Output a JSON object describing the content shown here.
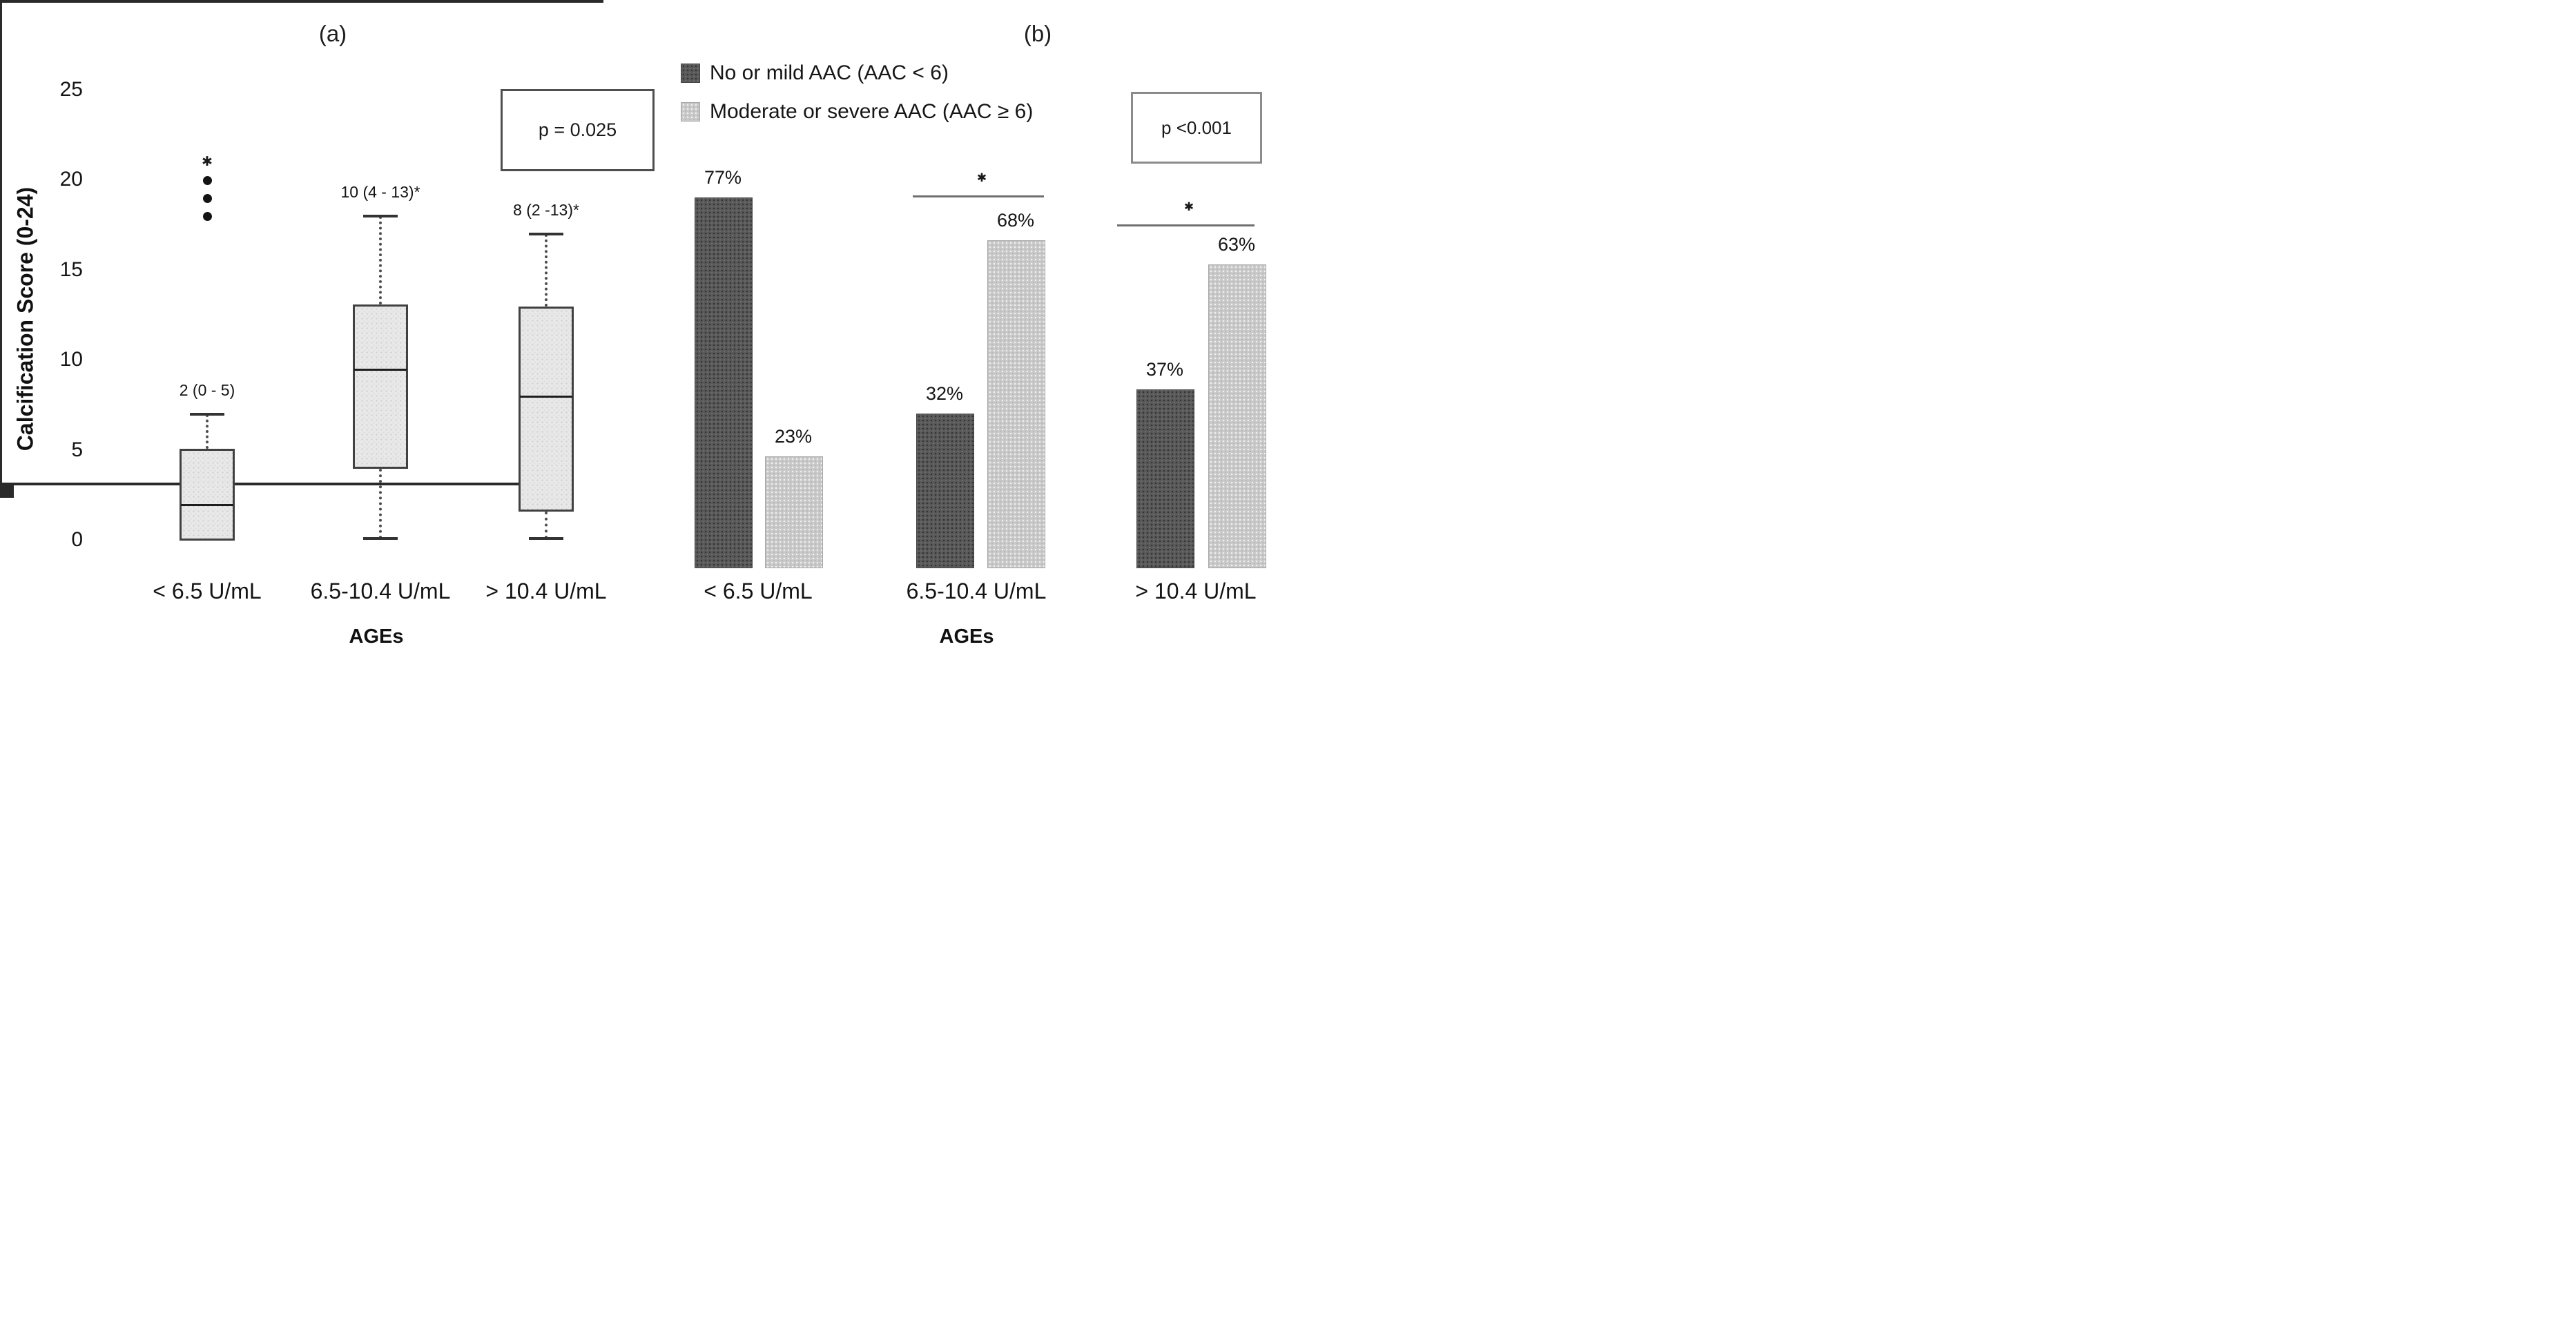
{
  "panels": {
    "a": {
      "title": "(a)"
    },
    "b": {
      "title": "(b)"
    }
  },
  "chart_data": [
    {
      "type": "boxplot",
      "title": "(a)",
      "ylabel": "Calcification Score (0-24)",
      "xlabel": "AGEs",
      "ylim": [
        0,
        25
      ],
      "yticks": [
        25,
        20,
        15,
        10,
        5,
        0
      ],
      "grid": false,
      "p_value_label": "p = 0.025",
      "categories": [
        "< 6.5 U/mL",
        "6.5-10.4 U/mL",
        "> 10.4 U/mL"
      ],
      "boxes": [
        {
          "category": "< 6.5 U/mL",
          "annotation": "2 (0 - 5)",
          "median": 2,
          "q1": 0,
          "q3": 5.1,
          "whisker_low": null,
          "whisker_high": 7,
          "outliers": [
            18,
            19,
            20
          ],
          "extreme_outlier": 21
        },
        {
          "category": "6.5-10.4 U/mL",
          "annotation": "10 (4 - 13)*",
          "median": 9.5,
          "q1": 4,
          "q3": 13.1,
          "whisker_low": 0.1,
          "whisker_high": 18,
          "outliers": [],
          "extreme_outlier": null
        },
        {
          "category": "> 10.4 U/mL",
          "annotation": "8 (2 -13)*",
          "median": 8,
          "q1": 1.6,
          "q3": 13,
          "whisker_low": 0.1,
          "whisker_high": 17,
          "outliers": [],
          "extreme_outlier": null
        }
      ]
    },
    {
      "type": "bar",
      "title": "(b)",
      "xlabel": "AGEs",
      "unit": "percent",
      "ylim": [
        0,
        100
      ],
      "grid": false,
      "legend_position": "top",
      "p_value_label": "p <0.001",
      "categories": [
        "< 6.5 U/mL",
        "6.5-10.4 U/mL",
        "> 10.4 U/mL"
      ],
      "series": [
        {
          "name": "No or mild AAC (AAC < 6)",
          "color": "#595959",
          "values": [
            77,
            32,
            37
          ],
          "labels": [
            "77%",
            "32%",
            "37%"
          ]
        },
        {
          "name": "Moderate or severe AAC (AAC ≥ 6)",
          "color": "#c9c9c9",
          "values": [
            23,
            68,
            63
          ],
          "labels": [
            "23%",
            "68%",
            "63%"
          ]
        }
      ],
      "significance_markers": [
        {
          "category": "6.5-10.4 U/mL",
          "marker": "*"
        },
        {
          "category": "> 10.4 U/mL",
          "marker": "*"
        }
      ]
    }
  ]
}
